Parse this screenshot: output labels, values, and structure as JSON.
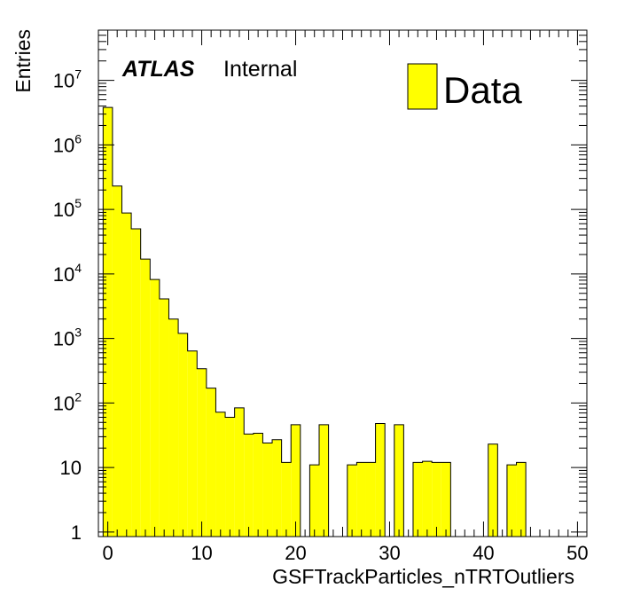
{
  "chart_data": {
    "type": "bar",
    "histogram": true,
    "xlabel": "GSFTrackParticles_nTRTOutliers",
    "ylabel": "Entries",
    "xlim": [
      -1,
      51
    ],
    "ylim": [
      0.85,
      60000000
    ],
    "yscale": "log",
    "bin_width": 1,
    "x_ticks": [
      0,
      10,
      20,
      30,
      40,
      50
    ],
    "y_ticks": [
      {
        "value": 1,
        "base": "1",
        "exp": ""
      },
      {
        "value": 10,
        "base": "10",
        "exp": ""
      },
      {
        "value": 100,
        "base": "10",
        "exp": "2"
      },
      {
        "value": 1000,
        "base": "10",
        "exp": "3"
      },
      {
        "value": 10000,
        "base": "10",
        "exp": "4"
      },
      {
        "value": 100000,
        "base": "10",
        "exp": "5"
      },
      {
        "value": 1000000,
        "base": "10",
        "exp": "6"
      },
      {
        "value": 10000000,
        "base": "10",
        "exp": "7"
      }
    ],
    "fill_color": "#ffff00",
    "line_color": "#000000",
    "series": [
      {
        "name": "Data",
        "bins": [
          [
            -0.5,
            3800000
          ],
          [
            0.5,
            230000
          ],
          [
            1.5,
            88000
          ],
          [
            2.5,
            50000
          ],
          [
            3.5,
            17000
          ],
          [
            4.5,
            8200
          ],
          [
            5.5,
            4100
          ],
          [
            6.5,
            2000
          ],
          [
            7.5,
            1200
          ],
          [
            8.5,
            640
          ],
          [
            9.5,
            340
          ],
          [
            10.5,
            170
          ],
          [
            11.5,
            72
          ],
          [
            12.5,
            60
          ],
          [
            13.5,
            84
          ],
          [
            14.5,
            33
          ],
          [
            15.5,
            34
          ],
          [
            16.5,
            24
          ],
          [
            17.5,
            27
          ],
          [
            18.5,
            12
          ],
          [
            19.5,
            46
          ],
          [
            20.5,
            0
          ],
          [
            21.5,
            11
          ],
          [
            22.5,
            46
          ],
          [
            23.5,
            0
          ],
          [
            24.5,
            0
          ],
          [
            25.5,
            11
          ],
          [
            26.5,
            12
          ],
          [
            27.5,
            12
          ],
          [
            28.5,
            48
          ],
          [
            29.5,
            0
          ],
          [
            30.5,
            46
          ],
          [
            31.5,
            0
          ],
          [
            32.5,
            12
          ],
          [
            33.5,
            12.5
          ],
          [
            34.5,
            12
          ],
          [
            35.5,
            12
          ],
          [
            36.5,
            0
          ],
          [
            37.5,
            0
          ],
          [
            38.5,
            0
          ],
          [
            39.5,
            0
          ],
          [
            40.5,
            23
          ],
          [
            41.5,
            0
          ],
          [
            42.5,
            11
          ],
          [
            43.5,
            12
          ],
          [
            44.5,
            0
          ],
          [
            45.5,
            0
          ],
          [
            46.5,
            0
          ],
          [
            47.5,
            0
          ],
          [
            48.5,
            0
          ],
          [
            49.5,
            0
          ]
        ]
      }
    ]
  },
  "labels": {
    "atlas": "ATLAS",
    "internal": "Internal",
    "legend_entry": "Data"
  }
}
